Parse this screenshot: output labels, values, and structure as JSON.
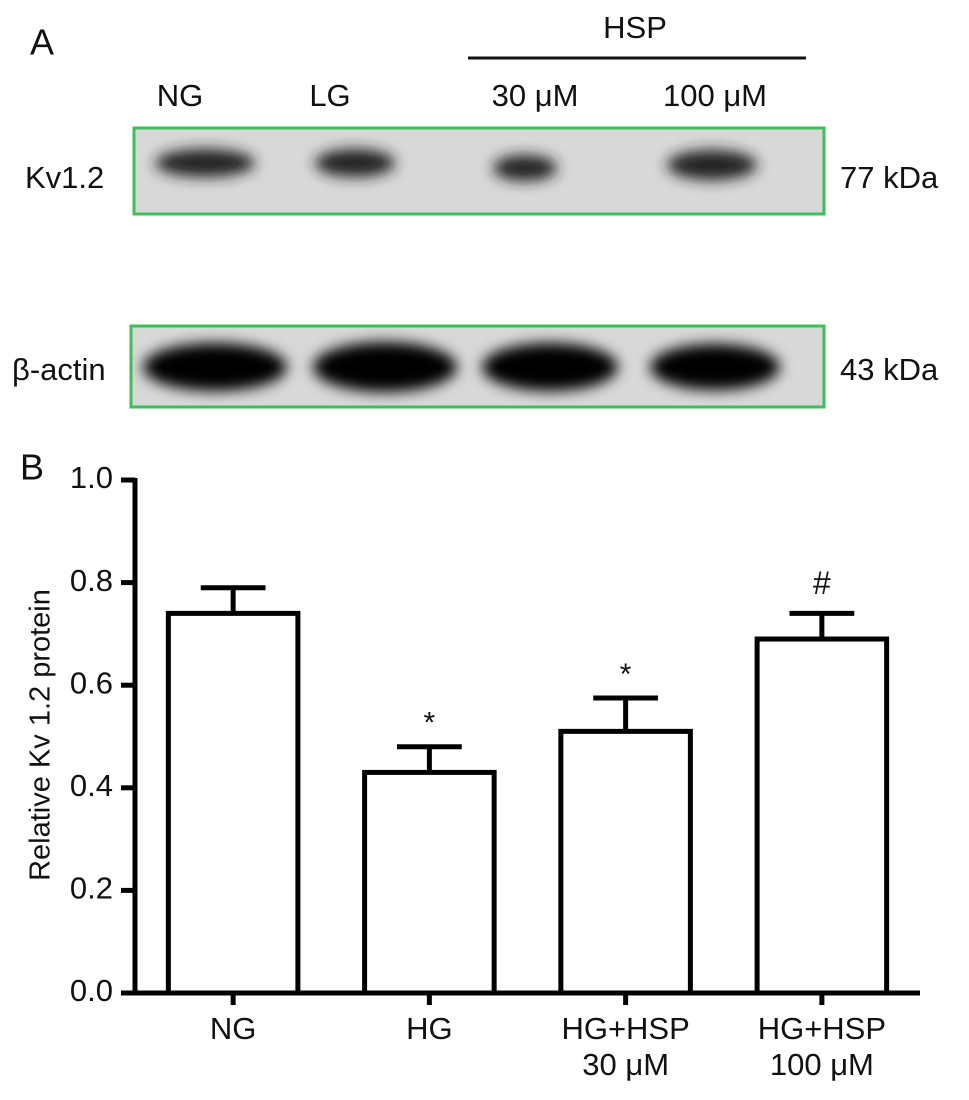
{
  "panel_a": {
    "label": "A",
    "group": "HSP",
    "lanes": [
      "NG",
      "LG",
      "30 μM",
      "100 μM"
    ],
    "blots": [
      {
        "name": "Kv1.2",
        "size": "77 kDa"
      },
      {
        "name": "β-actin",
        "size": "43 kDa"
      }
    ]
  },
  "chart_data": {
    "type": "bar",
    "panel_label": "B",
    "y_label": "Relative Kv 1.2 protein",
    "categories": [
      "NG",
      "HG",
      "HG+HSP\n30 μM",
      "HG+HSP\n100 μM"
    ],
    "values": [
      0.74,
      0.43,
      0.51,
      0.69
    ],
    "errors": [
      0.05,
      0.05,
      0.065,
      0.05
    ],
    "annotations": [
      null,
      "*",
      "*",
      "#"
    ],
    "color": "#ffffff",
    "ylim": [
      0,
      1.0
    ],
    "yticks": [
      {
        "value": 0,
        "label": "0.0"
      },
      0.2,
      0.4,
      0.6,
      0.8,
      {
        "value": 1.0,
        "label": "1.0"
      }
    ]
  }
}
